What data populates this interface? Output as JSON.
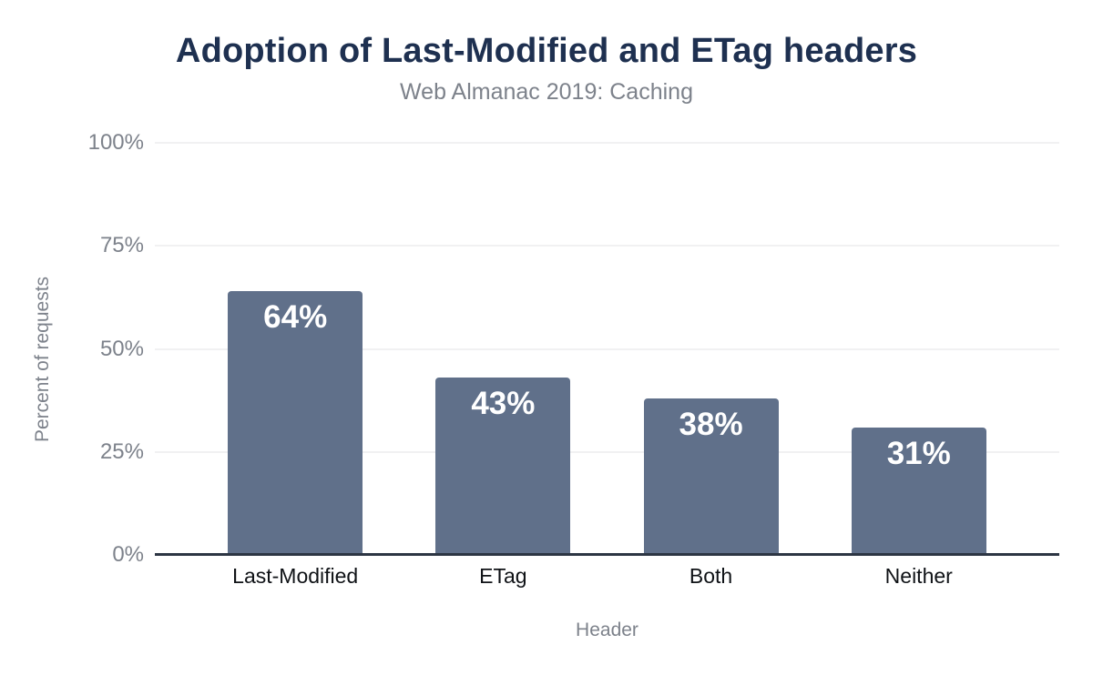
{
  "header": {
    "title": "Adoption of Last-Modified and ETag headers",
    "subtitle": "Web Almanac 2019: Caching"
  },
  "chart_data": {
    "type": "bar",
    "title": "Adoption of Last-Modified and ETag headers",
    "subtitle": "Web Almanac 2019: Caching",
    "categories": [
      "Last-Modified",
      "ETag",
      "Both",
      "Neither"
    ],
    "values": [
      64,
      43,
      38,
      31
    ],
    "value_labels": [
      "64%",
      "43%",
      "38%",
      "31%"
    ],
    "xlabel": "Header",
    "ylabel": "Percent of requests",
    "ylim": [
      0,
      100
    ],
    "yticks": [
      {
        "value": 0,
        "label": "0%"
      },
      {
        "value": 25,
        "label": "25%"
      },
      {
        "value": 50,
        "label": "50%"
      },
      {
        "value": 75,
        "label": "75%"
      },
      {
        "value": 100,
        "label": "100%"
      }
    ],
    "grid": "horizontal",
    "legend": "none",
    "colors": {
      "bar": "#60708a",
      "bar_label": "#ffffff",
      "title": "#1e3050",
      "muted_text": "#7d828b",
      "category_text": "#0f1216",
      "axis_line": "#2c3543",
      "gridline": "#f1f1f2",
      "background": "#ffffff"
    }
  }
}
